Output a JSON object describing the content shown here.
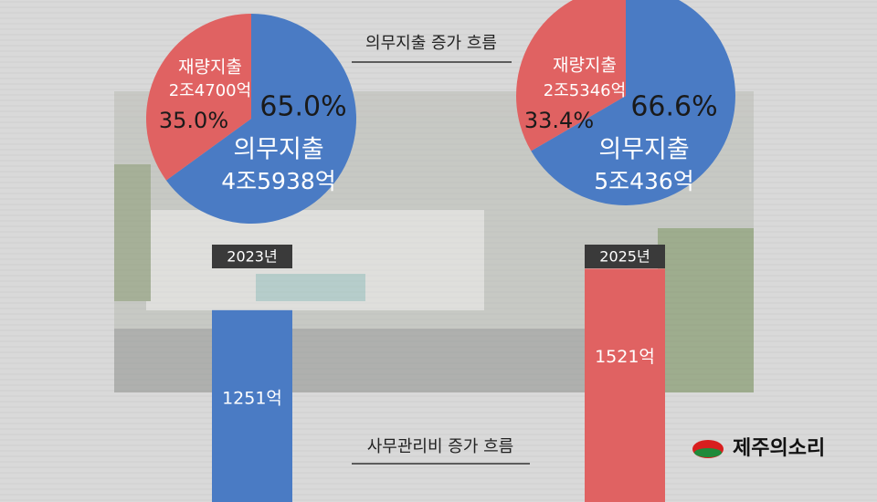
{
  "title": "의무지출 증가 흐름",
  "logo": "제주의소리",
  "chart_data": [
    {
      "type": "pie",
      "categories": [
        "의무지출",
        "재량지출"
      ],
      "values": [
        65.0,
        35.0
      ],
      "value_labels": [
        "65.0%",
        "35.0%"
      ],
      "amounts": [
        "4조5938억",
        "2조4700억"
      ],
      "colors": [
        "#4a7bc4",
        "#e06262"
      ]
    },
    {
      "type": "pie",
      "categories": [
        "의무지출",
        "재량지출"
      ],
      "values": [
        66.6,
        33.4
      ],
      "value_labels": [
        "66.6%",
        "33.4%"
      ],
      "amounts": [
        "5조436억",
        "2조5346억"
      ],
      "colors": [
        "#4a7bc4",
        "#e06262"
      ]
    },
    {
      "type": "bar",
      "title": "사무관리비 증가 흐름",
      "categories": [
        "2023년",
        "2025년"
      ],
      "values": [
        1251,
        1521
      ],
      "value_labels": [
        "1251억",
        "1521억"
      ],
      "colors": [
        "#4a7bc4",
        "#e06262"
      ]
    }
  ]
}
